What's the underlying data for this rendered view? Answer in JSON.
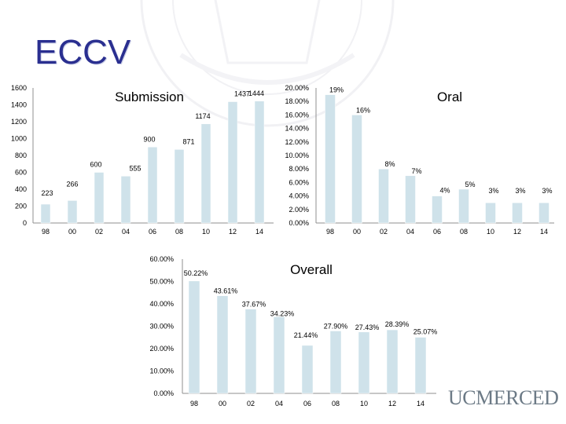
{
  "slide": {
    "title": "ECCV"
  },
  "logo": {
    "text": "UCMERCED"
  },
  "colors": {
    "title": "#2a2f90",
    "bar": "#cfe2ea",
    "axis": "#8f8f8f",
    "logo": "#6c7a86"
  },
  "chart_data": [
    {
      "id": "submission",
      "type": "bar",
      "title": "Submission",
      "categories": [
        "98",
        "00",
        "02",
        "04",
        "06",
        "08",
        "10",
        "12",
        "14"
      ],
      "values": [
        223,
        266,
        600,
        555,
        900,
        871,
        1174,
        1437,
        1444
      ],
      "value_labels": [
        "223",
        "266",
        "600",
        "555",
        "900",
        "871",
        "1174",
        "1437",
        "1444"
      ],
      "ylim": [
        0,
        1600
      ],
      "yticks": [
        "0",
        "200",
        "400",
        "600",
        "800",
        "1000",
        "1200",
        "1400",
        "1600"
      ],
      "ytick_values": [
        0,
        200,
        400,
        600,
        800,
        1000,
        1200,
        1400,
        1600
      ],
      "grid": false
    },
    {
      "id": "oral",
      "type": "bar",
      "title": "Oral",
      "categories": [
        "98",
        "00",
        "02",
        "04",
        "06",
        "08",
        "10",
        "12",
        "14"
      ],
      "values": [
        19,
        16,
        8,
        7,
        4,
        5,
        3,
        3,
        3
      ],
      "value_labels": [
        "19%",
        "16%",
        "8%",
        "7%",
        "4%",
        "5%",
        "3%",
        "3%",
        "3%"
      ],
      "ylim": [
        0,
        20
      ],
      "yticks": [
        "0.00%",
        "2.00%",
        "4.00%",
        "6.00%",
        "8.00%",
        "10.00%",
        "12.00%",
        "14.00%",
        "16.00%",
        "18.00%",
        "20.00%"
      ],
      "ytick_values": [
        0,
        2,
        4,
        6,
        8,
        10,
        12,
        14,
        16,
        18,
        20
      ],
      "grid": false
    },
    {
      "id": "overall",
      "type": "bar",
      "title": "Overall",
      "categories": [
        "98",
        "00",
        "02",
        "04",
        "06",
        "08",
        "10",
        "12",
        "14"
      ],
      "values": [
        50.22,
        43.61,
        37.67,
        34.23,
        21.44,
        27.9,
        27.43,
        28.39,
        25.07
      ],
      "value_labels": [
        "50.22%",
        "43.61%",
        "37.67%",
        "34.23%",
        "21.44%",
        "27.90%",
        "27.43%",
        "28.39%",
        "25.07%"
      ],
      "ylim": [
        0,
        60
      ],
      "yticks": [
        "0.00%",
        "10.00%",
        "20.00%",
        "30.00%",
        "40.00%",
        "50.00%",
        "60.00%"
      ],
      "ytick_values": [
        0,
        10,
        20,
        30,
        40,
        50,
        60
      ],
      "grid": false
    }
  ]
}
